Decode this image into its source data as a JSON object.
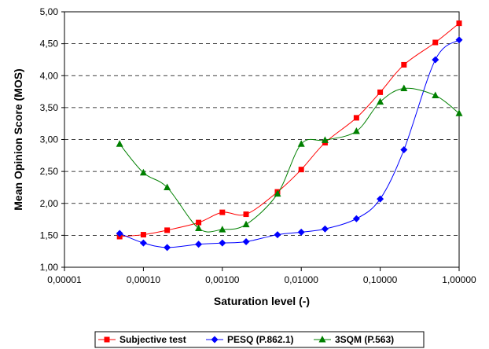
{
  "chart_data": {
    "type": "line",
    "xlabel": "Saturation level (-)",
    "ylabel": "Mean Opinion Score (MOS)",
    "x_scale": "log",
    "xlim": [
      1e-05,
      1.0
    ],
    "ylim": [
      1.0,
      5.0
    ],
    "x_ticks": [
      1e-05,
      0.0001,
      0.001,
      0.01,
      0.1,
      1.0
    ],
    "x_tick_labels": [
      "0,00001",
      "0,00010",
      "0,00100",
      "0,01000",
      "0,10000",
      "1,00000"
    ],
    "y_ticks": [
      1.0,
      1.5,
      2.0,
      2.5,
      3.0,
      3.5,
      4.0,
      4.5,
      5.0
    ],
    "y_tick_labels": [
      "1,00",
      "1,50",
      "2,00",
      "2,50",
      "3,00",
      "3,50",
      "4,00",
      "4,50",
      "5,00"
    ],
    "grid": "horizontal dashed",
    "legend_position": "bottom",
    "x": [
      5e-05,
      0.0001,
      0.0002,
      0.0005,
      0.001,
      0.002,
      0.005,
      0.01,
      0.02,
      0.05,
      0.1,
      0.2,
      0.5,
      1.0
    ],
    "series": [
      {
        "name": "Subjective test",
        "color": "#ff0000",
        "marker": "square",
        "values": [
          1.48,
          1.51,
          1.58,
          1.7,
          1.86,
          1.83,
          2.18,
          2.53,
          2.95,
          3.34,
          3.74,
          4.17,
          4.52,
          4.82
        ]
      },
      {
        "name": "PESQ (P.862.1)",
        "color": "#0000ff",
        "marker": "diamond",
        "values": [
          1.53,
          1.38,
          1.31,
          1.36,
          1.38,
          1.4,
          1.51,
          1.55,
          1.6,
          1.76,
          2.07,
          2.84,
          4.25,
          4.56
        ]
      },
      {
        "name": "3SQM (P.563)",
        "color": "#008000",
        "marker": "triangle",
        "values": [
          2.93,
          2.48,
          2.25,
          1.61,
          1.59,
          1.67,
          2.15,
          2.93,
          2.99,
          3.13,
          3.59,
          3.8,
          3.69,
          3.41
        ]
      }
    ]
  }
}
